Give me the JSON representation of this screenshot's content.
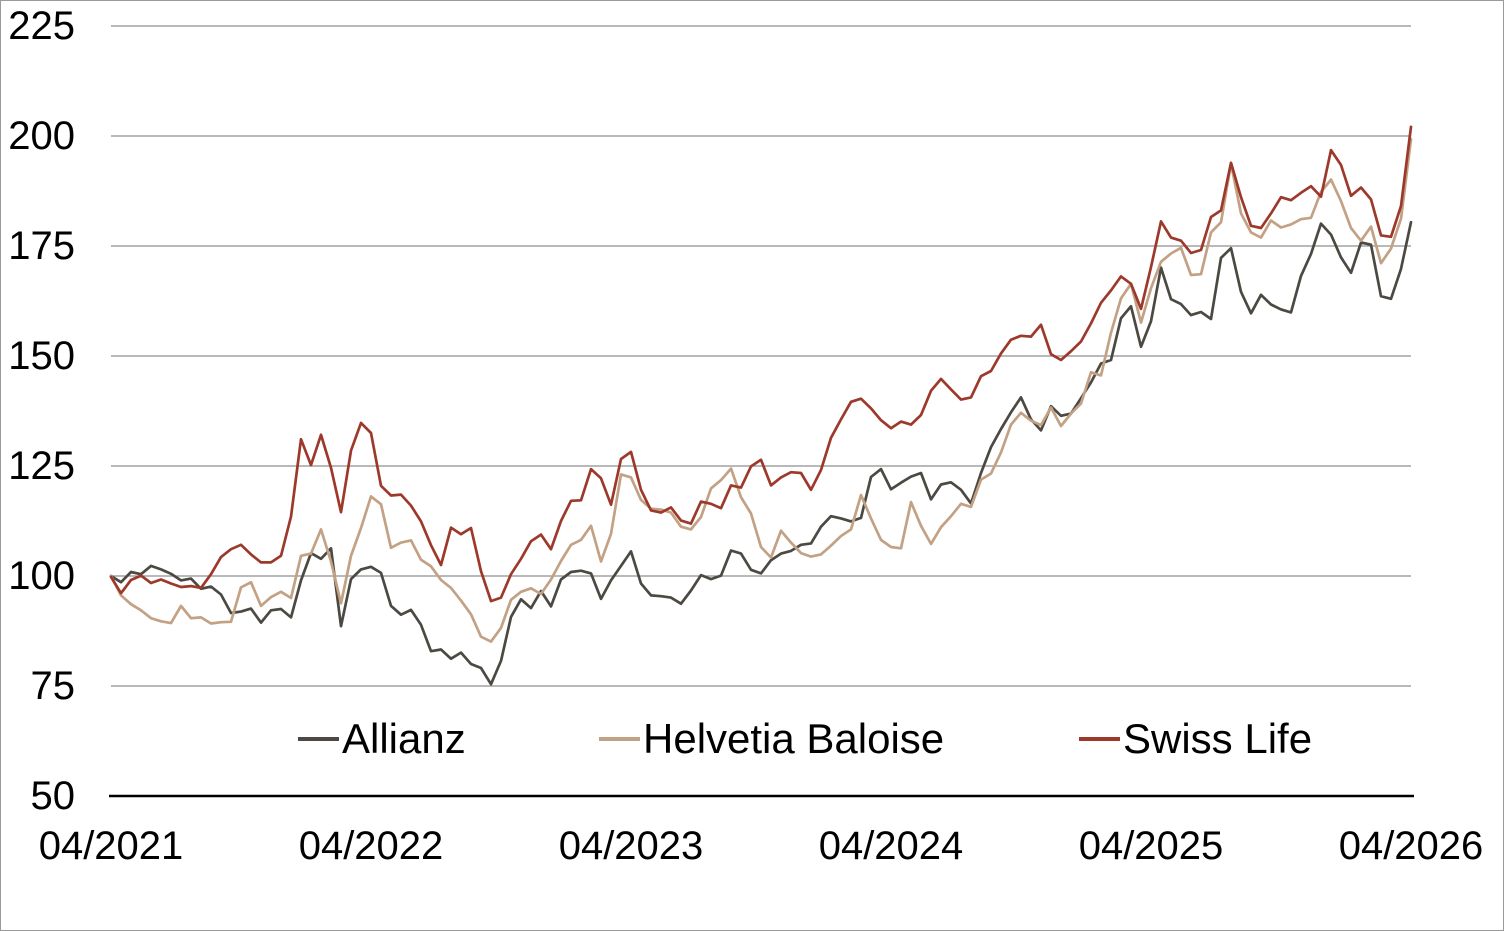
{
  "chart_data": {
    "type": "line",
    "title": "",
    "xlabel": "",
    "ylabel": "",
    "x_axis": {
      "tick_labels": [
        "04/2021",
        "04/2022",
        "04/2023",
        "04/2024",
        "04/2025",
        "04/2026"
      ],
      "start": "04/2021",
      "end": "04/2026"
    },
    "y_axis": {
      "min": 50,
      "max": 225,
      "ticks": [
        50,
        75,
        100,
        125,
        150,
        175,
        200,
        225
      ]
    },
    "grid": "horizontal",
    "axis_color": "#000000",
    "gridline_color": "#8f8f8f",
    "legend": {
      "position": "bottom-inside",
      "entries": [
        {
          "label": "Allianz",
          "color": "#4c4942"
        },
        {
          "label": "Helvetia Baloise",
          "color": "#c2a184"
        },
        {
          "label": "Swiss Life",
          "color": "#9d392b"
        }
      ]
    },
    "indexed_to": 100,
    "series": [
      {
        "name": "Allianz",
        "color": "#4c4942",
        "values": [
          100.0,
          98.6,
          100.9,
          100.4,
          102.3,
          101.5,
          100.5,
          99.0,
          99.4,
          97.1,
          97.6,
          95.8,
          91.6,
          91.9,
          92.6,
          89.4,
          92.2,
          92.5,
          90.6,
          99.0,
          105.2,
          103.9,
          106.3,
          88.6,
          99.3,
          101.5,
          102.1,
          100.7,
          93.2,
          91.2,
          92.3,
          88.9,
          82.9,
          83.3,
          81.2,
          82.6,
          80.0,
          79.1,
          75.4,
          80.7,
          90.7,
          94.7,
          92.7,
          96.6,
          93.1,
          99.2,
          100.9,
          101.2,
          100.6,
          94.8,
          99.0,
          102.3,
          105.6,
          98.3,
          95.6,
          95.4,
          95.1,
          93.7,
          96.7,
          100.2,
          99.3,
          100.1,
          105.8,
          105.1,
          101.4,
          100.6,
          103.6,
          105.1,
          105.7,
          107.1,
          107.4,
          111.2,
          113.6,
          113.1,
          112.4,
          113.2,
          122.5,
          124.3,
          119.7,
          121.2,
          122.6,
          123.4,
          117.4,
          120.8,
          121.3,
          119.6,
          116.5,
          123.4,
          129.3,
          133.4,
          137.2,
          140.6,
          135.6,
          133.1,
          138.6,
          136.4,
          136.9,
          140.4,
          144.0,
          148.3,
          149.1,
          158.6,
          161.3,
          152.1,
          157.9,
          170.1,
          162.9,
          161.8,
          159.3,
          160.0,
          158.4,
          172.3,
          174.5,
          164.6,
          159.7,
          163.9,
          161.7,
          160.6,
          159.9,
          168.2,
          173.2,
          180.1,
          177.6,
          172.4,
          168.9,
          175.8,
          175.3,
          163.6,
          163.0,
          169.8,
          180.4
        ]
      },
      {
        "name": "Helvetia Baloise",
        "color": "#c2a184",
        "values": [
          100.0,
          95.6,
          93.6,
          92.2,
          90.4,
          89.7,
          89.3,
          93.2,
          90.4,
          90.6,
          89.2,
          89.5,
          89.6,
          97.4,
          98.6,
          93.2,
          95.2,
          96.4,
          95.0,
          104.6,
          105.1,
          110.6,
          103.3,
          93.8,
          104.6,
          110.9,
          118.1,
          116.3,
          106.4,
          107.6,
          108.1,
          103.7,
          102.2,
          99.1,
          97.3,
          94.4,
          91.3,
          86.2,
          85.1,
          88.2,
          94.6,
          96.4,
          97.2,
          95.9,
          99.2,
          103.4,
          107.1,
          108.2,
          111.4,
          103.3,
          109.6,
          123.1,
          122.4,
          117.3,
          115.3,
          115.1,
          114.4,
          111.2,
          110.6,
          113.4,
          119.9,
          121.8,
          124.4,
          117.9,
          114.2,
          106.6,
          104.2,
          110.3,
          107.6,
          105.2,
          104.4,
          104.9,
          106.9,
          109.1,
          110.6,
          118.4,
          113.1,
          108.2,
          106.6,
          106.3,
          116.8,
          111.4,
          107.3,
          111.1,
          113.6,
          116.4,
          115.7,
          121.9,
          123.3,
          128.1,
          134.4,
          137.1,
          135.3,
          134.3,
          138.3,
          134.1,
          136.9,
          139.2,
          146.3,
          145.6,
          155.3,
          163.1,
          166.4,
          157.6,
          165.4,
          171.4,
          173.3,
          174.6,
          168.4,
          168.6,
          178.1,
          180.4,
          193.7,
          182.4,
          178.1,
          176.9,
          180.8,
          179.2,
          179.9,
          181.1,
          181.4,
          187.3,
          190.1,
          185.2,
          179.1,
          176.2,
          179.4,
          171.1,
          174.4,
          181.2,
          199.3
        ]
      },
      {
        "name": "Swiss Life",
        "color": "#9d392b",
        "values": [
          99.8,
          96.1,
          99.1,
          100.1,
          98.4,
          99.2,
          98.3,
          97.5,
          97.7,
          97.3,
          100.4,
          104.3,
          106.1,
          107.1,
          104.9,
          103.1,
          103.1,
          104.6,
          113.5,
          131.1,
          125.2,
          132.1,
          124.6,
          114.5,
          128.5,
          134.8,
          132.5,
          120.5,
          118.3,
          118.5,
          116.0,
          112.4,
          107.0,
          102.5,
          111.0,
          109.5,
          110.9,
          101.1,
          94.3,
          95.1,
          100.4,
          103.9,
          107.9,
          109.4,
          106.1,
          112.5,
          117.1,
          117.2,
          124.3,
          122.2,
          116.2,
          126.6,
          128.2,
          119.6,
          114.9,
          114.4,
          115.6,
          112.6,
          111.9,
          116.9,
          116.4,
          115.4,
          120.6,
          120.1,
          124.9,
          126.4,
          120.6,
          122.4,
          123.6,
          123.4,
          119.6,
          124.1,
          131.4,
          135.6,
          139.6,
          140.3,
          138.1,
          135.4,
          133.6,
          135.1,
          134.4,
          136.6,
          142.1,
          144.8,
          142.4,
          140.1,
          140.6,
          145.4,
          146.6,
          150.6,
          153.7,
          154.6,
          154.4,
          157.1,
          150.4,
          149.1,
          151.1,
          153.3,
          157.4,
          162.1,
          164.9,
          168.1,
          166.4,
          160.7,
          170.2,
          180.6,
          176.9,
          176.2,
          173.4,
          174.1,
          181.6,
          183.1,
          193.9,
          186.1,
          179.6,
          179.1,
          182.4,
          186.1,
          185.4,
          187.1,
          188.6,
          186.2,
          196.8,
          193.4,
          186.4,
          188.3,
          185.6,
          177.4,
          177.1,
          184.1,
          202.1
        ]
      }
    ]
  }
}
